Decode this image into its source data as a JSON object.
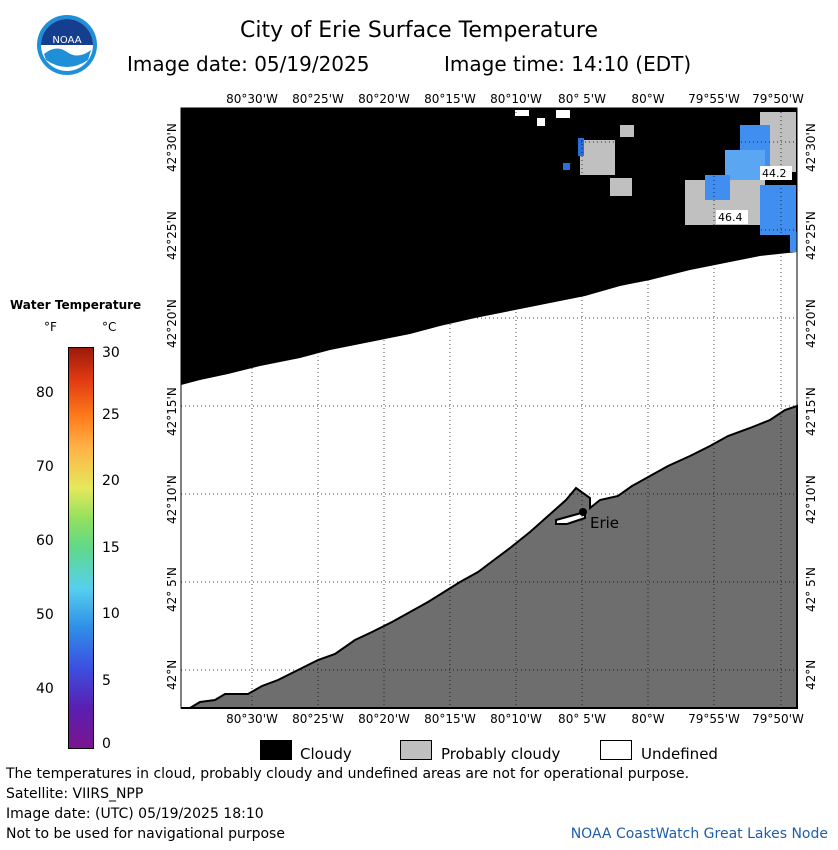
{
  "header": {
    "title": "City of Erie Surface Temperature",
    "image_date": "Image date: 05/19/2025",
    "image_time": "Image time: 14:10 (EDT)",
    "logo_text": "NOAA"
  },
  "map": {
    "lon_labels": [
      "80°30'W",
      "80°25'W",
      "80°20'W",
      "80°15'W",
      "80°10'W",
      "80° 5'W",
      "80°W",
      "79°55'W",
      "79°50'W"
    ],
    "lat_labels": [
      "42°30'N",
      "42°25'N",
      "42°20'N",
      "42°15'N",
      "42°10'N",
      "42° 5'N",
      "42°N"
    ],
    "city_label": "Erie",
    "contour_labels": [
      "44.2",
      "46.4"
    ]
  },
  "legend": {
    "title": "Water Temperature",
    "unit_f": "°F",
    "unit_c": "°C",
    "f_ticks": [
      "80",
      "70",
      "60",
      "50",
      "40"
    ],
    "c_ticks": [
      "30",
      "25",
      "20",
      "15",
      "10",
      "5",
      "0"
    ]
  },
  "key": {
    "cloudy": "Cloudy",
    "probably_cloudy": "Probably cloudy",
    "undefined": "Undefined",
    "colors": {
      "cloudy": "#000000",
      "probably_cloudy": "#c0c0c0",
      "undefined": "#ffffff",
      "land": "#6e6e6e",
      "water_cold": "#3f8ef0"
    }
  },
  "footer": {
    "disclaimer": "The temperatures in cloud, probably cloudy and undefined areas are not for operational purpose.",
    "satellite": "Satellite: VIIRS_NPP",
    "utc_date": "Image date: (UTC) 05/19/2025  18:10",
    "nav_warning": "Not to be used for navigational purpose",
    "node": "NOAA CoastWatch Great Lakes Node"
  }
}
